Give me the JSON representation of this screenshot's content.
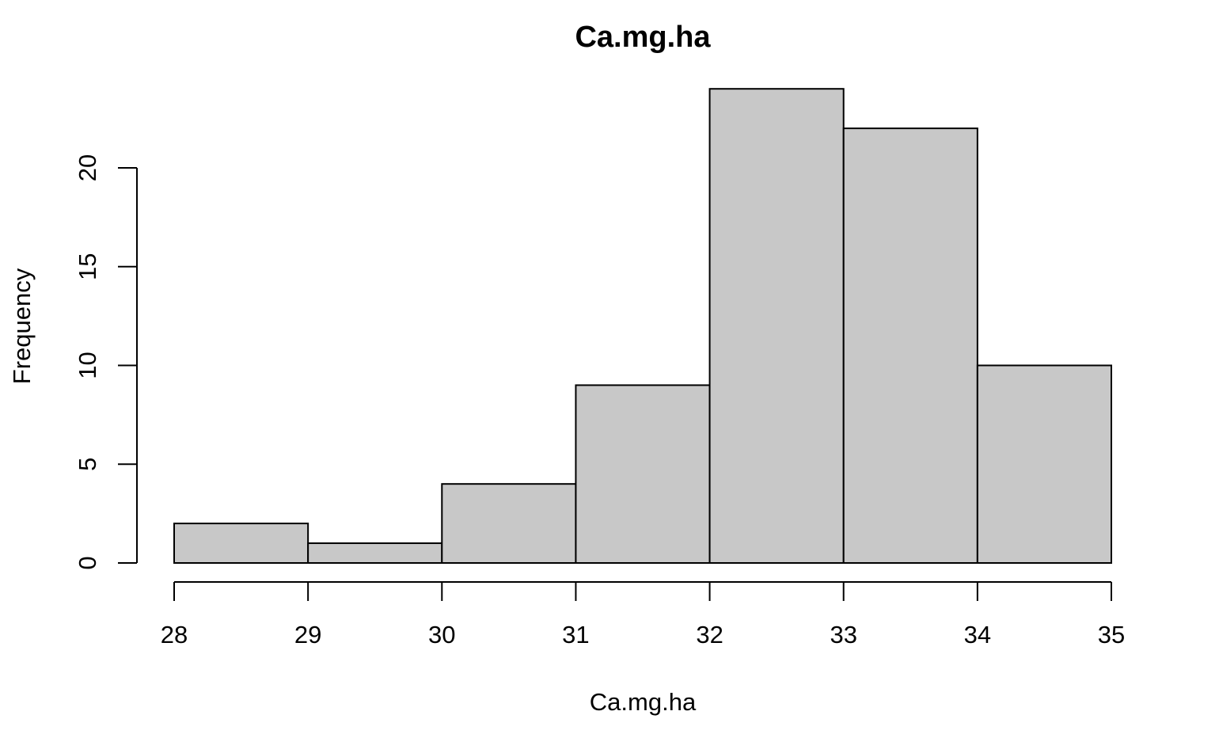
{
  "chart_data": {
    "type": "bar",
    "title": "Ca.mg.ha",
    "xlabel": "Ca.mg.ha",
    "ylabel": "Frequency",
    "bins": [
      {
        "x0": 28,
        "x1": 29,
        "count": 2
      },
      {
        "x0": 29,
        "x1": 30,
        "count": 1
      },
      {
        "x0": 30,
        "x1": 31,
        "count": 4
      },
      {
        "x0": 31,
        "x1": 32,
        "count": 9
      },
      {
        "x0": 32,
        "x1": 33,
        "count": 24
      },
      {
        "x0": 33,
        "x1": 34,
        "count": 22
      },
      {
        "x0": 34,
        "x1": 35,
        "count": 10
      }
    ],
    "xlim": [
      28,
      35
    ],
    "ylim": [
      0,
      24
    ],
    "x_ticks": [
      "28",
      "29",
      "30",
      "31",
      "32",
      "33",
      "34",
      "35"
    ],
    "y_ticks": [
      "0",
      "5",
      "10",
      "15",
      "20"
    ],
    "grid": false,
    "bar_fill": "#c8c8c8",
    "bar_stroke": "#000000"
  }
}
